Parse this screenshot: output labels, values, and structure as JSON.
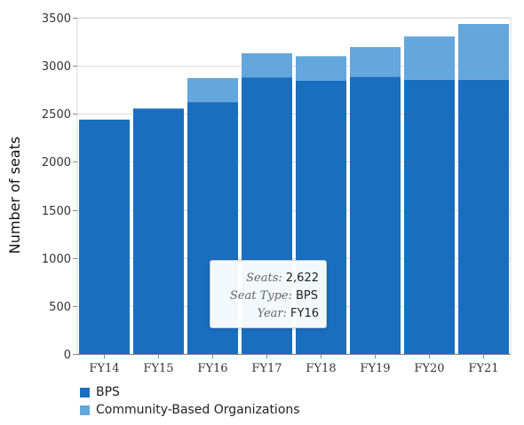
{
  "chart_data": {
    "type": "bar",
    "stacked": true,
    "categories": [
      "FY14",
      "FY15",
      "FY16",
      "FY17",
      "FY18",
      "FY19",
      "FY20",
      "FY21"
    ],
    "series": [
      {
        "name": "BPS",
        "color": "#1a6ec0",
        "values": [
          2440,
          2555,
          2622,
          2880,
          2845,
          2885,
          2855,
          2855
        ]
      },
      {
        "name": "Community-Based Organizations",
        "color": "#64a7dc",
        "values": [
          0,
          0,
          250,
          250,
          255,
          310,
          450,
          580
        ]
      }
    ],
    "xlabel": "",
    "ylabel": "Number of seats",
    "ylim": [
      0,
      3500
    ],
    "yticks": [
      0,
      500,
      1000,
      1500,
      2000,
      2500,
      3000,
      3500
    ],
    "grid": true,
    "legend_position": "bottom-left"
  },
  "tooltip": {
    "rows": [
      {
        "key": "Seats:",
        "value": "2,622"
      },
      {
        "key": "Seat Type:",
        "value": "BPS"
      },
      {
        "key": "Year:",
        "value": "FY16"
      }
    ]
  }
}
